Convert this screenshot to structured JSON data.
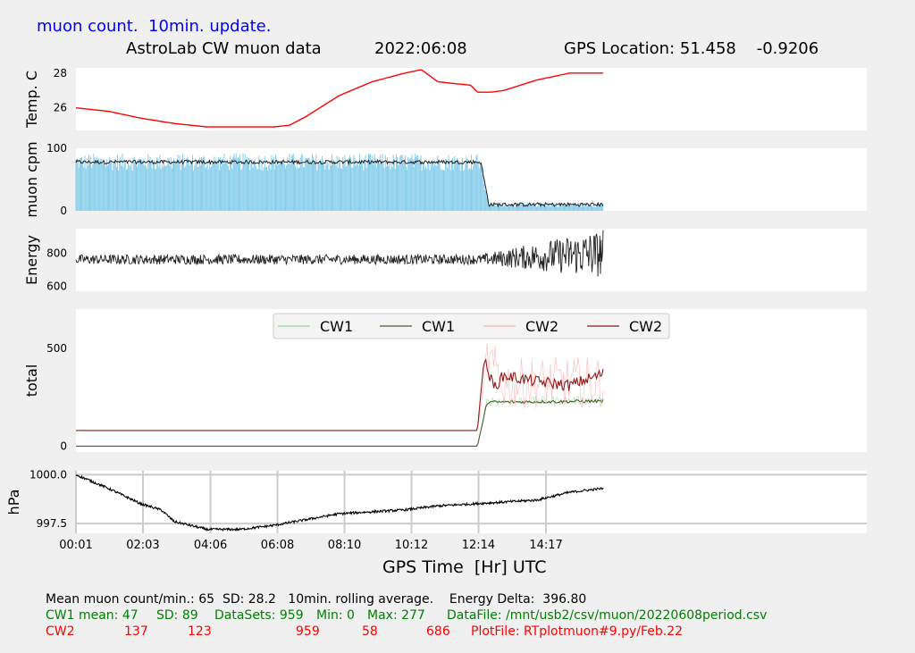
{
  "header": {
    "update_note": "muon count.  10min. update.",
    "lab_title": "AstroLab CW muon data",
    "date": "2022:06:08",
    "gps_location": "GPS Location: 51.458    -0.9206"
  },
  "x_axis": {
    "label": "GPS Time  [Hr] UTC",
    "ticks": [
      "00:01",
      "02:03",
      "04:06",
      "06:08",
      "08:10",
      "10:12",
      "12:14",
      "14:17"
    ],
    "tick_hours": [
      0.0167,
      2.05,
      4.1,
      6.133,
      8.167,
      10.2,
      12.233,
      14.283
    ],
    "range_hours": [
      0.0167,
      24.0167
    ]
  },
  "colors": {
    "temp": "#ff0000",
    "muon_bars": "#87ceeb",
    "muon_avg": "#222222",
    "energy": "#222222",
    "cw1_raw": "#98d898",
    "cw1_avg": "#4a5e2a",
    "cw2_raw": "#ffb0b0",
    "cw2_avg": "#8b1a1a",
    "pressure": "#000000",
    "blue_text": "#0000ff",
    "green_text": "#008000",
    "red_text": "#ff0000"
  },
  "chart_data": [
    {
      "type": "line",
      "name": "temperature",
      "ylabel": "Temp. C",
      "yticks": [
        26,
        28
      ],
      "ylim": [
        24.7,
        28.3
      ],
      "x": [
        0.0167,
        1,
        2,
        3,
        4,
        5,
        6,
        6.5,
        7,
        7.5,
        8,
        9,
        10,
        10.5,
        11,
        11.5,
        12,
        12.2,
        12.6,
        13,
        13.5,
        14,
        15,
        16,
        16.03
      ],
      "y": [
        26.0,
        25.8,
        25.4,
        25.1,
        24.9,
        24.9,
        24.9,
        25.0,
        25.5,
        26.1,
        26.7,
        27.5,
        28.0,
        28.2,
        27.5,
        27.4,
        27.3,
        26.9,
        26.9,
        27.0,
        27.3,
        27.6,
        28.0,
        28.0,
        28.0
      ]
    },
    {
      "type": "bar",
      "name": "muon_cpm",
      "ylabel": "muon cpm",
      "yticks": [
        0,
        100
      ],
      "ylim": [
        0,
        100
      ],
      "levels": {
        "x": [
          0.0167,
          12.3,
          12.55,
          16.03
        ],
        "y": [
          78,
          78,
          10,
          10
        ]
      },
      "noise": 6
    },
    {
      "type": "line",
      "name": "energy",
      "ylabel": "Energy",
      "yticks": [
        600,
        800
      ],
      "ylim": [
        570,
        950
      ],
      "levels": {
        "x": [
          0.0167,
          12.3,
          16.03
        ],
        "y": [
          763,
          763,
          800
        ]
      },
      "amplitude": {
        "x": [
          0.0167,
          12.3,
          16.03
        ],
        "y": [
          30,
          30,
          150
        ]
      }
    },
    {
      "type": "line",
      "name": "total",
      "ylabel": "total",
      "yticks": [
        0,
        500
      ],
      "ylim": [
        -30,
        700
      ],
      "legend": {
        "position": "top",
        "entries": [
          "CW1",
          "CW1",
          "CW2",
          "CW2"
        ]
      },
      "series": [
        {
          "name": "CW1",
          "raw": true,
          "x": [
            0.0167,
            12.2,
            12.5,
            13,
            16.03
          ],
          "y": [
            0,
            0,
            230,
            230,
            235
          ]
        },
        {
          "name": "CW1",
          "x": [
            0.0167,
            12.2,
            12.5,
            13,
            16.03
          ],
          "y": [
            0,
            0,
            225,
            225,
            230
          ]
        },
        {
          "name": "CW2",
          "raw": true,
          "x": [
            0.0167,
            12.2,
            12.5,
            13,
            16.03
          ],
          "y": [
            80,
            80,
            440,
            320,
            330
          ]
        },
        {
          "name": "CW2",
          "x": [
            0.0167,
            12.2,
            12.4,
            12.7,
            13,
            14,
            15,
            16.03
          ],
          "y": [
            80,
            80,
            440,
            300,
            360,
            330,
            310,
            370
          ]
        }
      ]
    },
    {
      "type": "line",
      "name": "pressure",
      "ylabel": "hPa",
      "yticks": [
        997.5,
        1000.0
      ],
      "ylim": [
        997.0,
        1000.2
      ],
      "grid": true,
      "x": [
        0.0167,
        1,
        2,
        2.6,
        3,
        4,
        5,
        6,
        7,
        8,
        9,
        10,
        11,
        12,
        13,
        14,
        15,
        16.03
      ],
      "y": [
        1000.0,
        999.3,
        998.5,
        998.2,
        997.6,
        997.2,
        997.2,
        997.4,
        997.7,
        998.0,
        998.1,
        998.2,
        998.4,
        998.5,
        998.6,
        998.7,
        999.1,
        999.3
      ]
    }
  ],
  "stats": {
    "line1": "Mean muon count/min.: 65  SD: 28.2   10min. rolling average.    Energy Delta:  396.80",
    "cw1": {
      "mean": "CW1 mean: 47",
      "sd": "SD: 89",
      "datasets": "DataSets: 959",
      "min": "Min: 0",
      "max": "Max: 277",
      "file": "DataFile: /mnt/usb2/csv/muon/20220608period.csv"
    },
    "cw2": {
      "label": "CW2",
      "mean": "137",
      "sd": "123",
      "datasets": "959",
      "min": "58",
      "max": "686",
      "file": "PlotFile: RTplotmuon#9.py/Feb.22"
    }
  }
}
